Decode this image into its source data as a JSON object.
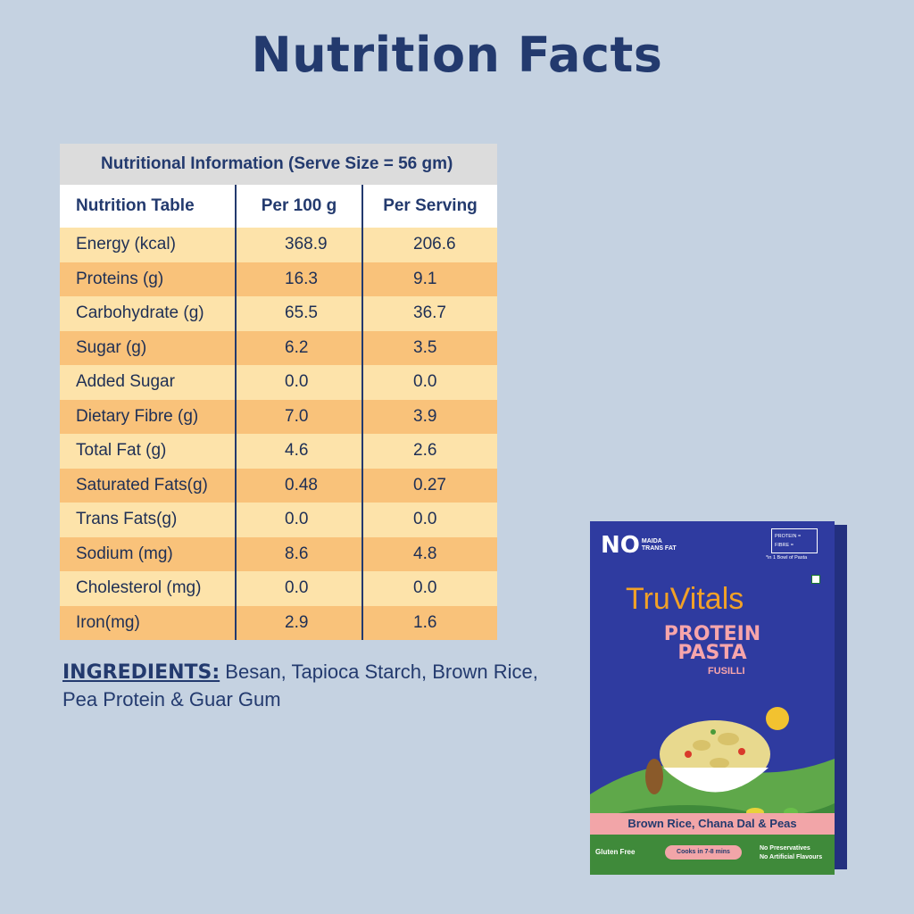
{
  "page": {
    "title": "Nutrition Facts"
  },
  "table": {
    "caption": "Nutritional Information (Serve Size = 56 gm)",
    "headers": [
      "Nutrition Table",
      "Per 100 g",
      "Per Serving"
    ],
    "rows": [
      [
        "Energy (kcal)",
        "368.9",
        "206.6"
      ],
      [
        "Proteins (g)",
        "16.3",
        "9.1"
      ],
      [
        "Carbohydrate (g)",
        "65.5",
        "36.7"
      ],
      [
        "Sugar (g)",
        "6.2",
        "3.5"
      ],
      [
        "Added Sugar",
        "0.0",
        "0.0"
      ],
      [
        "Dietary Fibre (g)",
        "7.0",
        "3.9"
      ],
      [
        "Total Fat (g)",
        "4.6",
        "2.6"
      ],
      [
        "Saturated Fats(g)",
        "0.48",
        "0.27"
      ],
      [
        "Trans Fats(g)",
        "0.0",
        "0.0"
      ],
      [
        "Sodium (mg)",
        "8.6",
        "4.8"
      ],
      [
        "Cholesterol (mg)",
        "0.0",
        "0.0"
      ],
      [
        "Iron(mg)",
        "2.9",
        "1.6"
      ]
    ]
  },
  "ingredients": {
    "label": "INGREDIENTS:",
    "text": "Besan, Tapioca Starch, Brown Rice, Pea Protein & Guar Gum"
  },
  "product": {
    "no_label": "NO",
    "no_items": [
      "MAIDA",
      "TRANS FAT"
    ],
    "protein_label": "PROTEIN =",
    "fibre_label": "FIBRE =",
    "bowl_note": "*in 1 Bowl of Pasta",
    "brand": "TruVitals",
    "name_line1": "PROTEIN",
    "name_line2": "PASTA",
    "variant": "FUSILLI",
    "flavour": "Brown Rice, Chana Dal & Peas",
    "gluten": "Gluten Free",
    "cooks": "Cooks in 7-8 mins",
    "claim1": "No Preservatives",
    "claim2": "No Artificial Flavours"
  },
  "colors": {
    "background": "#c5d2e1",
    "navy": "#233a6e",
    "row_light": "#fde3aa",
    "row_dark": "#f9c27a",
    "box_blue": "#2f3ba0",
    "brand_orange": "#f2a127",
    "pink": "#f2a5a8"
  }
}
